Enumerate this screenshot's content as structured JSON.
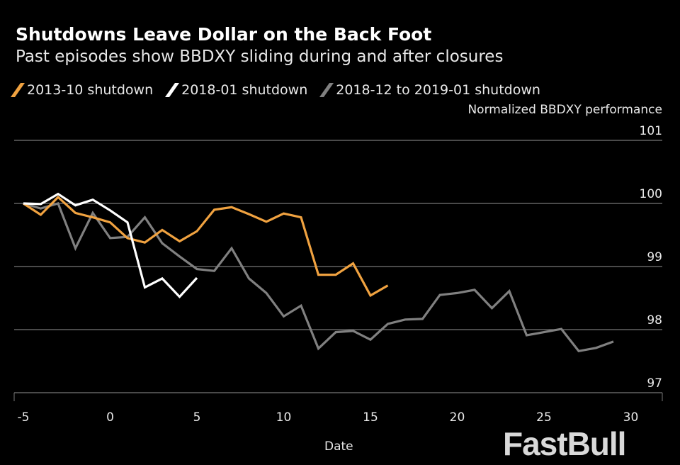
{
  "chart_data": {
    "type": "line",
    "title": "Shutdowns Leave Dollar on the Back Foot",
    "subtitle": "Past episodes show BBDXY sliding during and after closures",
    "xlabel": "Date",
    "ylabel": "Normalized BBDXY performance",
    "xlim": [
      -5.8,
      31.5
    ],
    "ylim": [
      97,
      101
    ],
    "xticks": [
      -5,
      0,
      5,
      10,
      15,
      20,
      25,
      30
    ],
    "yticks": [
      97,
      98,
      99,
      100,
      101
    ],
    "grid": "horizontal",
    "legend_position": "top-left",
    "series": [
      {
        "name": "2013-10 shutdown",
        "color": "#f0a240",
        "x_start": -5,
        "values": [
          100,
          99.82,
          100.1,
          99.85,
          99.78,
          99.7,
          99.45,
          99.38,
          99.58,
          99.4,
          99.56,
          99.9,
          99.94,
          99.83,
          99.71,
          99.84,
          99.78,
          98.87,
          98.87,
          99.05,
          98.54,
          98.7
        ]
      },
      {
        "name": "2018-01 shutdown",
        "color": "#ffffff",
        "x_start": -5,
        "values": [
          100,
          99.99,
          100.15,
          99.97,
          100.06,
          99.89,
          99.7,
          98.67,
          98.81,
          98.52,
          98.82
        ]
      },
      {
        "name": "2018-12 to 2019-01 shutdown",
        "color": "#808080",
        "x_start": -5,
        "values": [
          100,
          99.92,
          100,
          99.29,
          99.85,
          99.45,
          99.47,
          99.78,
          99.37,
          99.16,
          98.96,
          98.93,
          99.29,
          98.81,
          98.58,
          98.21,
          98.38,
          97.7,
          97.96,
          97.98,
          97.84,
          98.09,
          98.16,
          98.17,
          98.55,
          98.58,
          98.63,
          98.34,
          98.61,
          97.91,
          97.96,
          98.01,
          97.66,
          97.71,
          97.81
        ]
      }
    ]
  },
  "watermark": "FastBull"
}
